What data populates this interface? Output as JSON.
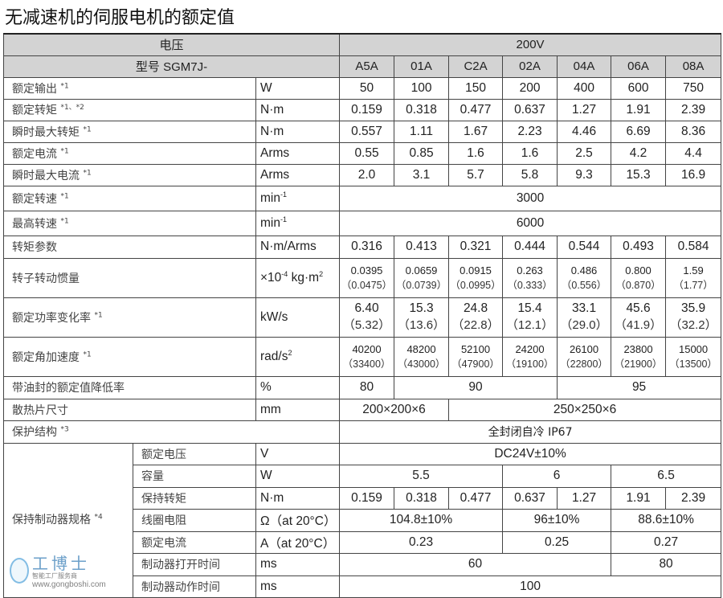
{
  "title": "无减速机的伺服电机的额定值",
  "header": {
    "voltage_label": "电压",
    "voltage_value": "200V",
    "model_label": "型号 SGM7J-",
    "models": [
      "A5A",
      "01A",
      "C2A",
      "02A",
      "04A",
      "06A",
      "08A"
    ]
  },
  "rows": [
    {
      "label": "额定输出",
      "note": "*1",
      "unit": "W",
      "values": [
        "50",
        "100",
        "150",
        "200",
        "400",
        "600",
        "750"
      ]
    },
    {
      "label": "额定转矩",
      "note": "*1、*2",
      "unit": "N·m",
      "values": [
        "0.159",
        "0.318",
        "0.477",
        "0.637",
        "1.27",
        "1.91",
        "2.39"
      ]
    },
    {
      "label": "瞬时最大转矩",
      "note": "*1",
      "unit": "N·m",
      "values": [
        "0.557",
        "1.11",
        "1.67",
        "2.23",
        "4.46",
        "6.69",
        "8.36"
      ]
    },
    {
      "label": "额定电流",
      "note": "*1",
      "unit": "Arms",
      "values": [
        "0.55",
        "0.85",
        "1.6",
        "1.6",
        "2.5",
        "4.2",
        "4.4"
      ]
    },
    {
      "label": "瞬时最大电流",
      "note": "*1",
      "unit": "Arms",
      "values": [
        "2.0",
        "3.1",
        "5.7",
        "5.8",
        "9.3",
        "15.3",
        "16.9"
      ]
    }
  ],
  "rated_speed": {
    "label": "额定转速",
    "note": "*1",
    "unit": "min",
    "unit_sup": "-1",
    "value": "3000"
  },
  "max_speed": {
    "label": "最高转速",
    "note": "*1",
    "unit": "min",
    "unit_sup": "-1",
    "value": "6000"
  },
  "torque_const": {
    "label": "转矩参数",
    "unit": "N·m/Arms",
    "values": [
      "0.316",
      "0.413",
      "0.321",
      "0.444",
      "0.544",
      "0.493",
      "0.584"
    ]
  },
  "inertia": {
    "label": "转子转动惯量",
    "unit": "×10",
    "unit_sup": "-4",
    "unit_rest": " kg·m",
    "unit_sup2": "2",
    "values": [
      "0.0395",
      "0.0659",
      "0.0915",
      "0.263",
      "0.486",
      "0.800",
      "1.59"
    ],
    "brake_values": [
      "（0.0475）",
      "（0.0739）",
      "（0.0995）",
      "（0.333）",
      "（0.556）",
      "（0.870）",
      "（1.77）"
    ]
  },
  "power_rate": {
    "label": "额定功率变化率",
    "note": "*1",
    "unit": "kW/s",
    "values": [
      "6.40",
      "15.3",
      "24.8",
      "15.4",
      "33.1",
      "45.6",
      "35.9"
    ],
    "brake_values": [
      "（5.32）",
      "（13.6）",
      "（22.8）",
      "（12.1）",
      "（29.0）",
      "（41.9）",
      "（32.2）"
    ]
  },
  "angular_accel": {
    "label": "额定角加速度",
    "note": "*1",
    "unit": "rad/s",
    "unit_sup": "2",
    "values": [
      "40200",
      "48200",
      "52100",
      "24200",
      "26100",
      "23800",
      "15000"
    ],
    "brake_values": [
      "（33400）",
      "（43000）",
      "（47900）",
      "（19100）",
      "（22800）",
      "（21900）",
      "（13500）"
    ]
  },
  "oil_seal": {
    "label": "带油封的额定值降低率",
    "unit": "%",
    "values": [
      "80",
      "90",
      "95"
    ]
  },
  "heatsink": {
    "label": "散热片尺寸",
    "unit": "mm",
    "values": [
      "200×200×6",
      "250×250×6"
    ]
  },
  "protection": {
    "label": "保护结构",
    "note": "*3",
    "value": "全封闭自冷 IP67"
  },
  "brake": {
    "label": "保持制动器规格",
    "note": "*4",
    "voltage": {
      "label": "额定电压",
      "unit": "V",
      "value": "DC24V±10%"
    },
    "capacity": {
      "label": "容量",
      "unit": "W",
      "values": [
        "5.5",
        "6",
        "6.5"
      ]
    },
    "holding_torque": {
      "label": "保持转矩",
      "unit": "N·m",
      "values": [
        "0.159",
        "0.318",
        "0.477",
        "0.637",
        "1.27",
        "1.91",
        "2.39"
      ]
    },
    "coil_resistance": {
      "label": "线圈电阻",
      "unit": "Ω（at 20°C）",
      "values": [
        "104.8±10%",
        "96±10%",
        "88.6±10%"
      ]
    },
    "current": {
      "label": "额定电流",
      "unit": "A（at 20°C）",
      "values": [
        "0.23",
        "0.25",
        "0.27"
      ]
    },
    "open_time": {
      "label": "制动器打开时间",
      "unit": "ms",
      "values": [
        "60",
        "80"
      ]
    },
    "action_time": {
      "label": "制动器动作时间",
      "unit": "ms",
      "value": "100"
    }
  },
  "watermark": {
    "name": "工博士",
    "tagline": "智能工厂服务商",
    "url": "www.gongboshi.com"
  }
}
